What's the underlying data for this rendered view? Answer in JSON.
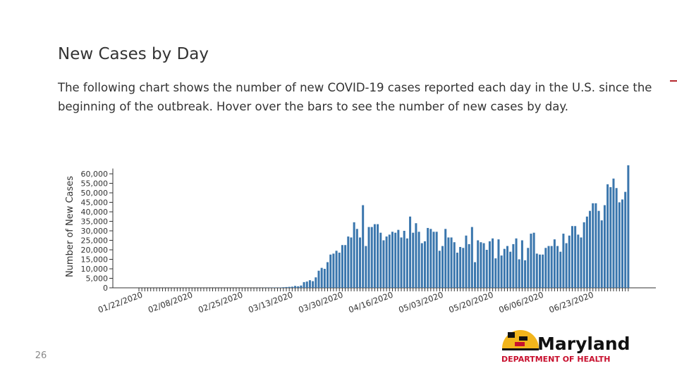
{
  "chart_data": {
    "type": "bar",
    "title": "New Cases by Day",
    "subtitle": "The following chart shows the number of new COVID-19 cases reported each day in the U.S. since the beginning of the outbreak. Hover over the bars to see the number of new cases by day.",
    "y_label": "Number of New Cases",
    "color": "#3a76ad",
    "categories": [
      "01/22/2020",
      null,
      null,
      null,
      null,
      null,
      null,
      null,
      null,
      null,
      null,
      null,
      null,
      null,
      null,
      null,
      null,
      "02/08/2020",
      null,
      null,
      null,
      null,
      null,
      null,
      null,
      null,
      null,
      null,
      null,
      null,
      null,
      null,
      null,
      null,
      "02/25/2020",
      null,
      null,
      null,
      null,
      null,
      null,
      null,
      null,
      null,
      null,
      null,
      null,
      null,
      null,
      null,
      null,
      "03/13/2020",
      null,
      null,
      null,
      null,
      null,
      null,
      null,
      null,
      null,
      null,
      null,
      null,
      null,
      null,
      null,
      null,
      "03/30/2020",
      null,
      null,
      null,
      null,
      null,
      null,
      null,
      null,
      null,
      null,
      null,
      null,
      null,
      null,
      null,
      null,
      "04/16/2020",
      null,
      null,
      null,
      null,
      null,
      null,
      null,
      null,
      null,
      null,
      null,
      null,
      null,
      null,
      null,
      null,
      "05/03/2020",
      null,
      null,
      null,
      null,
      null,
      null,
      null,
      null,
      null,
      null,
      null,
      null,
      null,
      null,
      null,
      null,
      "05/20/2020",
      null,
      null,
      null,
      null,
      null,
      null,
      null,
      null,
      null,
      null,
      null,
      null,
      null,
      null,
      null,
      null,
      "06/06/2020",
      null,
      null,
      null,
      null,
      null,
      null,
      null,
      null,
      null,
      null,
      null,
      null,
      null,
      null,
      null,
      null,
      "06/23/2020",
      null,
      null,
      null,
      null,
      null,
      null,
      null,
      null,
      null,
      null,
      null,
      null,
      null
    ],
    "values": [
      0,
      0,
      0,
      0,
      0,
      0,
      0,
      0,
      0,
      0,
      0,
      0,
      0,
      0,
      0,
      0,
      0,
      0,
      0,
      0,
      0,
      0,
      0,
      0,
      0,
      0,
      0,
      0,
      0,
      0,
      0,
      0,
      0,
      0,
      0,
      0,
      0,
      0,
      0,
      0,
      20,
      30,
      50,
      60,
      80,
      100,
      150,
      100,
      200,
      300,
      400,
      500,
      600,
      1000,
      800,
      1200,
      3000,
      3300,
      4000,
      3500,
      5500,
      9000,
      10500,
      10000,
      13500,
      17500,
      18000,
      19500,
      18500,
      22500,
      22500,
      27000,
      26500,
      34500,
      31000,
      26500,
      43500,
      22000,
      32000,
      32000,
      33500,
      33500,
      29000,
      25000,
      27000,
      28000,
      29500,
      29000,
      30500,
      26500,
      30000,
      26000,
      37500,
      29000,
      34000,
      29500,
      23500,
      24500,
      31500,
      31000,
      29500,
      29500,
      19500,
      22000,
      31000,
      26500,
      26500,
      24000,
      18500,
      21500,
      21000,
      27500,
      23000,
      32000,
      13500,
      25000,
      24000,
      23500,
      20000,
      24500,
      26000,
      15500,
      25500,
      17000,
      20500,
      22000,
      19000,
      23000,
      26000,
      15000,
      25000,
      14500,
      21000,
      28500,
      29000,
      18000,
      17500,
      17500,
      21000,
      22000,
      22000,
      25500,
      22000,
      19000,
      28500,
      23500,
      27500,
      32500,
      32500,
      28000,
      26500,
      34500,
      37500,
      40500,
      44500,
      44500,
      40500,
      35500,
      43500,
      54500,
      53000,
      57500,
      52500,
      45000,
      46500,
      50500,
      64500
    ],
    "ylim": [
      0,
      65000
    ],
    "yticks": [
      0,
      {
        "value": 5000,
        "label": "5,000"
      },
      {
        "value": 10000,
        "label": "10,000"
      },
      {
        "value": 15000,
        "label": "15,000"
      },
      {
        "value": 20000,
        "label": "20,000"
      },
      {
        "value": 25000,
        "label": "25,000"
      },
      {
        "value": 30000,
        "label": "30,000"
      },
      {
        "value": 35000,
        "label": "35,000"
      },
      {
        "value": 40000,
        "label": "40,000"
      },
      {
        "value": 45000,
        "label": "45,000"
      },
      {
        "value": 50000,
        "label": "50,000"
      },
      {
        "value": 55000,
        "label": "55,000"
      },
      {
        "value": 60000,
        "label": "60,000"
      }
    ],
    "grid": false
  },
  "slide": {
    "page_number": "26",
    "logo_name": "Maryland",
    "logo_department": "DEPARTMENT OF HEALTH"
  }
}
